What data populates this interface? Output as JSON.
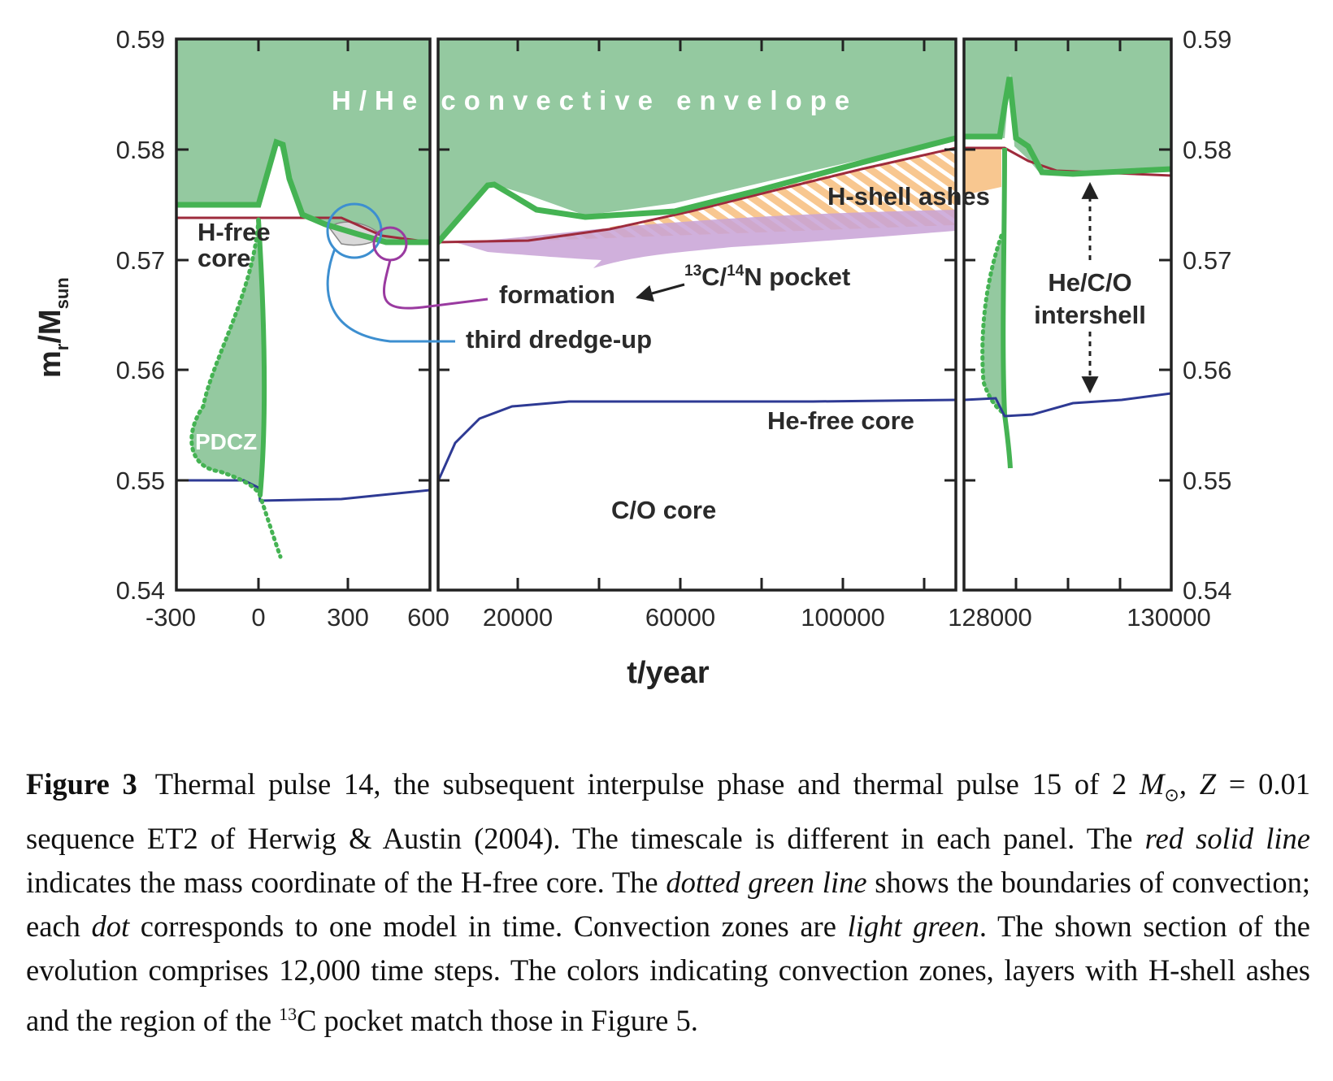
{
  "chart_data": [
    {
      "type": "line",
      "panel": "thermal pulse 14",
      "x_range": [
        -300,
        600
      ],
      "y_range": [
        0.54,
        0.59
      ],
      "x_ticks": [
        "-300",
        "0",
        "300",
        "600"
      ],
      "series": [
        {
          "name": "H-free core",
          "x": [
            -300,
            0,
            150,
            300,
            600
          ],
          "y": [
            0.574,
            0.574,
            0.574,
            0.574,
            0.5715
          ]
        },
        {
          "name": "He-free core",
          "x": [
            -300,
            0,
            10,
            300,
            600
          ],
          "y": [
            0.55,
            0.5498,
            0.5483,
            0.5485,
            0.5492
          ]
        },
        {
          "name": "H/He convective envelope boundary",
          "x": [
            -300,
            0,
            60,
            80,
            120,
            200,
            300,
            400,
            600
          ],
          "y": [
            0.575,
            0.575,
            0.579,
            0.5805,
            0.576,
            0.574,
            0.5725,
            0.5715,
            0.5715
          ]
        },
        {
          "name": "PDCZ",
          "x": [
            -270,
            -250,
            -200,
            -100,
            0,
            30,
            80
          ],
          "y": [
            0.5535,
            0.556,
            0.558,
            0.563,
            0.5495,
            0.547,
            0.543
          ]
        }
      ]
    },
    {
      "type": "line",
      "panel": "interpulse phase",
      "x_range": [
        0,
        128000
      ],
      "y_range": [
        0.54,
        0.59
      ],
      "x_ticks": [
        "20000",
        "60000",
        "100000",
        "128000"
      ],
      "series": [
        {
          "name": "H-free core",
          "x": [
            0,
            20000,
            60000,
            100000,
            128000
          ],
          "y": [
            0.5715,
            0.572,
            0.5745,
            0.5775,
            0.5802
          ]
        },
        {
          "name": "He-free core",
          "x": [
            0,
            5000,
            10000,
            20000,
            30000,
            60000,
            128000
          ],
          "y": [
            0.55,
            0.5535,
            0.5555,
            0.5568,
            0.557,
            0.557,
            0.5572
          ]
        },
        {
          "name": "H/He convective envelope boundary",
          "x": [
            0,
            12000,
            25000,
            40000,
            60000,
            100000,
            128000
          ],
          "y": [
            0.5715,
            0.5765,
            0.574,
            0.5735,
            0.575,
            0.578,
            0.5812
          ]
        }
      ]
    },
    {
      "type": "line",
      "panel": "thermal pulse 15",
      "x_range": [
        127500,
        130000
      ],
      "y_range": [
        0.54,
        0.59
      ],
      "x_ticks": [
        "128000",
        "130000"
      ],
      "series": [
        {
          "name": "H-free core",
          "x": [
            127500,
            128000,
            130000
          ],
          "y": [
            0.5802,
            0.5802,
            0.5775
          ]
        },
        {
          "name": "He-free core",
          "x": [
            127500,
            127900,
            128100,
            128600,
            130000
          ],
          "y": [
            0.5573,
            0.5575,
            0.5561,
            0.5568,
            0.558
          ]
        },
        {
          "name": "H/He convective envelope boundary",
          "x": [
            127500,
            127900,
            128050,
            128200,
            128400,
            130000
          ],
          "y": [
            0.5812,
            0.5812,
            0.5865,
            0.5805,
            0.5778,
            0.578
          ]
        }
      ]
    }
  ],
  "axes": {
    "y_ticks": [
      "0.59",
      "0.58",
      "0.57",
      "0.56",
      "0.55",
      "0.54"
    ],
    "x_label": "t/year",
    "y_label_main": "m",
    "y_label_sub_r": "r",
    "y_label_mid": "/M",
    "y_label_sub_sun": "sun"
  },
  "annotations": {
    "envelope": "H/He convective envelope",
    "h_free_line1": "H-free",
    "h_free_line2": "core",
    "pdcz": "PDCZ",
    "formation": "formation",
    "third_dredge_up": "third dredge-up",
    "pocket_c": "13",
    "pocket_c_tail": "C/",
    "pocket_n": "14",
    "pocket_n_tail": "N pocket",
    "h_shell_ashes": "H-shell ashes",
    "he_free_core": "He-free core",
    "co_core": "C/O core",
    "intershell_line1": "He/C/O",
    "intershell_line2": "intershell"
  },
  "colors": {
    "convection_fill": "#94c9a0",
    "convection_line": "#45b353",
    "h_free": "#9e2b3c",
    "he_free": "#2e3a94",
    "ashes": "#f8c790",
    "pocket": "#c8a2d6",
    "formation_circle": "#9a3aa0",
    "dredge_circle": "#3d8fd0"
  },
  "caption": {
    "label": "Figure 3",
    "p1": "Thermal pulse 14, the subsequent interpulse phase and thermal pulse 15 of 2 ",
    "p1_m": "M",
    "p1_sun": "⊙",
    "p1_end": ",",
    "p2_z": "Z",
    "p2": " = 0.01 sequence ET2 of Herwig & Austin (2004). The timescale is different in each panel. The ",
    "red_line": "red solid line",
    "p3": " indicates the mass coordinate of the H-free core. The ",
    "dotted_green": "dotted green line",
    "p4": " shows the boundaries of convection; each ",
    "dot": "dot",
    "p5": " corresponds to one model in time. Convection zones are ",
    "light_green": "light green",
    "p6": ". The shown section of the evolution comprises 12,000 time steps. The colors indicating convection zones, layers with H-shell ashes and the region of the ",
    "p6_sup": "13",
    "p7": "C pocket match those in Figure 5."
  }
}
